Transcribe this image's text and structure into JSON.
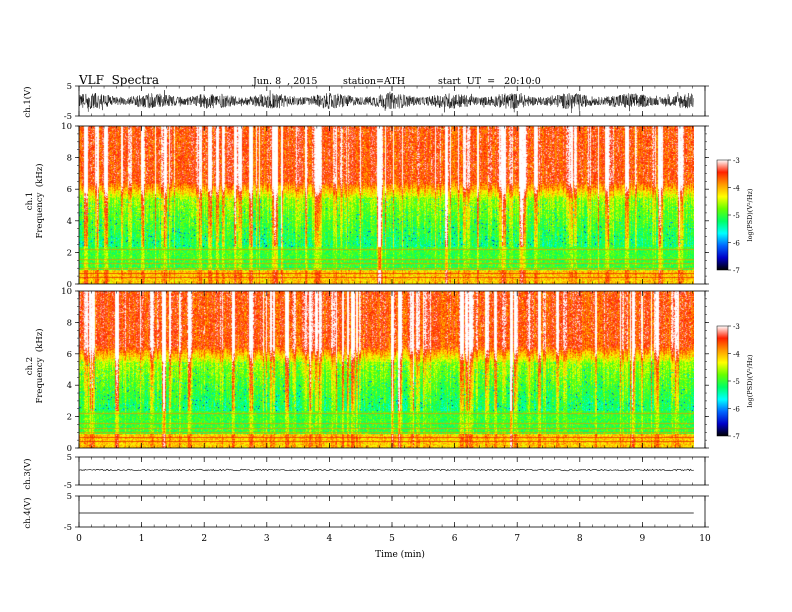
{
  "header": {
    "title": "VLF  Spectra",
    "date": "Jun. 8  , 2015",
    "station": "station=ATH",
    "start": "start  UT  =   20:10:0"
  },
  "chart_data": [
    {
      "type": "line",
      "panel": "ch1-waveform",
      "ylabel": "ch.1(V)",
      "ylim": [
        -5,
        5
      ],
      "yticks": [
        "5",
        "-5"
      ],
      "xlim": [
        0,
        10
      ],
      "description_values": "dense noisy waveform, amplitude roughly -2.5 to 2.5 V"
    },
    {
      "type": "heatmap",
      "panel": "ch1-spectrogram",
      "ylabel": "ch.1\nFrequency  (kHz)",
      "ylim": [
        0,
        10
      ],
      "yticks": [
        "0",
        "2",
        "4",
        "6",
        "8",
        "10"
      ],
      "xlim": [
        0,
        10
      ],
      "colorbar": {
        "label": "log(PSD)(V²/Hz)",
        "ticks": [
          "-3",
          "-4",
          "-5",
          "-6",
          "-7"
        ],
        "range": [
          -7,
          -3
        ]
      }
    },
    {
      "type": "heatmap",
      "panel": "ch2-spectrogram",
      "ylabel": "ch.2\nFrequency  (kHz)",
      "ylim": [
        0,
        10
      ],
      "yticks": [
        "0",
        "2",
        "4",
        "6",
        "8",
        "10"
      ],
      "xlim": [
        0,
        10
      ],
      "colorbar": {
        "label": "log(PSD)(V²/Hz)",
        "ticks": [
          "-3",
          "-4",
          "-5",
          "-6",
          "-7"
        ],
        "range": [
          -7,
          -3
        ]
      }
    },
    {
      "type": "line",
      "panel": "ch3-waveform",
      "ylabel": "ch.3(V)",
      "ylim": [
        -5,
        5
      ],
      "yticks": [
        "5",
        "-5"
      ],
      "xlim": [
        0,
        10
      ]
    },
    {
      "type": "line",
      "panel": "ch4-waveform",
      "ylabel": "ch.4(V)",
      "ylim": [
        -5,
        5
      ],
      "yticks": [
        "5",
        "-5"
      ],
      "xlim": [
        0,
        10
      ]
    }
  ],
  "xaxis": {
    "label": "Time  (min)",
    "ticks": [
      "0",
      "1",
      "2",
      "3",
      "4",
      "5",
      "6",
      "7",
      "8",
      "9",
      "10"
    ],
    "range": [
      0,
      10
    ],
    "data_end": 9.82
  },
  "colors": {
    "waveform": "#000000",
    "colormap": [
      "#000000",
      "#0000c8",
      "#0066ff",
      "#00ffff",
      "#00ff66",
      "#66ff00",
      "#ffff00",
      "#ff9900",
      "#ff2200",
      "#ffffff"
    ]
  }
}
